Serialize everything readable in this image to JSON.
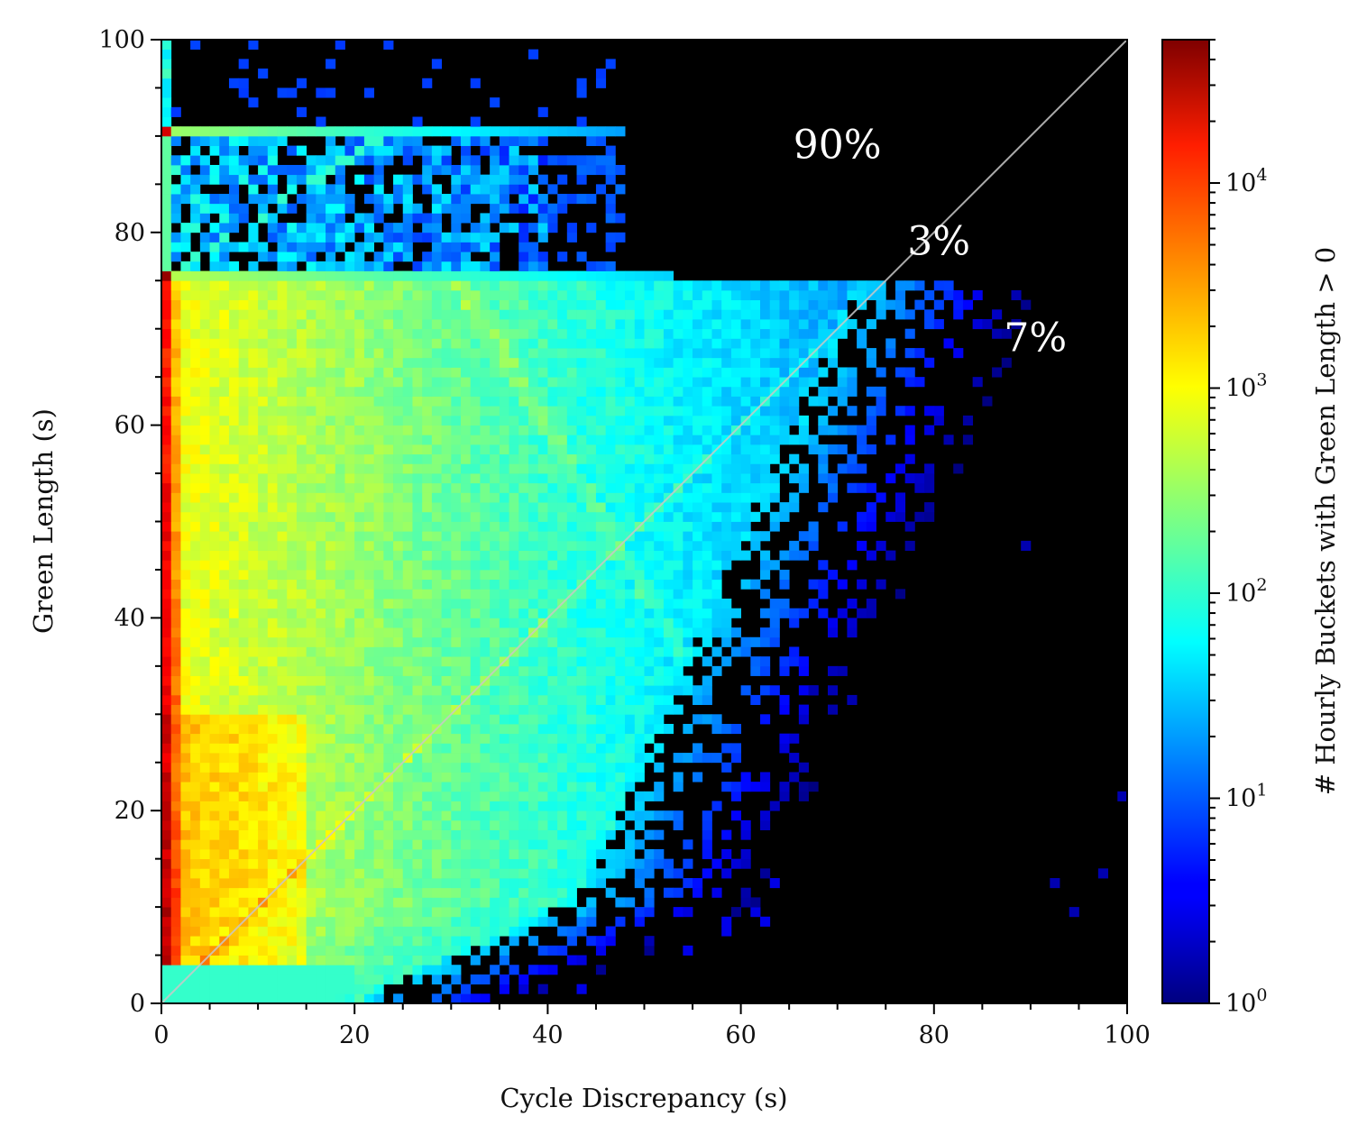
{
  "chart_data": {
    "type": "heatmap",
    "xlabel": "Cycle Discrepancy (s)",
    "ylabel": "Green Length (s)",
    "colorbar_label": "# Hourly Buckets with Green Length > 0",
    "colorbar_scale": "log",
    "xlim": [
      0,
      100
    ],
    "ylim": [
      0,
      100
    ],
    "xticks": [
      "0",
      "20",
      "40",
      "60",
      "80",
      "100"
    ],
    "yticks": [
      "0",
      "20",
      "40",
      "60",
      "80",
      "100"
    ],
    "colorbar_range": [
      1,
      50000
    ],
    "colorbar_ticks": [
      {
        "base": "10",
        "exp": "0",
        "value": 1
      },
      {
        "base": "10",
        "exp": "1",
        "value": 10
      },
      {
        "base": "10",
        "exp": "2",
        "value": 100
      },
      {
        "base": "10",
        "exp": "3",
        "value": 1000
      },
      {
        "base": "10",
        "exp": "4",
        "value": 10000
      }
    ],
    "colormap": "jet",
    "background_color": "#000000",
    "diagonal_reference_line": {
      "from": [
        0,
        0
      ],
      "to": [
        100,
        100
      ],
      "color": "#bbbbbb"
    },
    "annotations": [
      {
        "text": "90%",
        "x": 70,
        "y": 89
      },
      {
        "text": "3%",
        "x": 80.5,
        "y": 79
      },
      {
        "text": "7%",
        "x": 90.5,
        "y": 69
      }
    ]
  }
}
